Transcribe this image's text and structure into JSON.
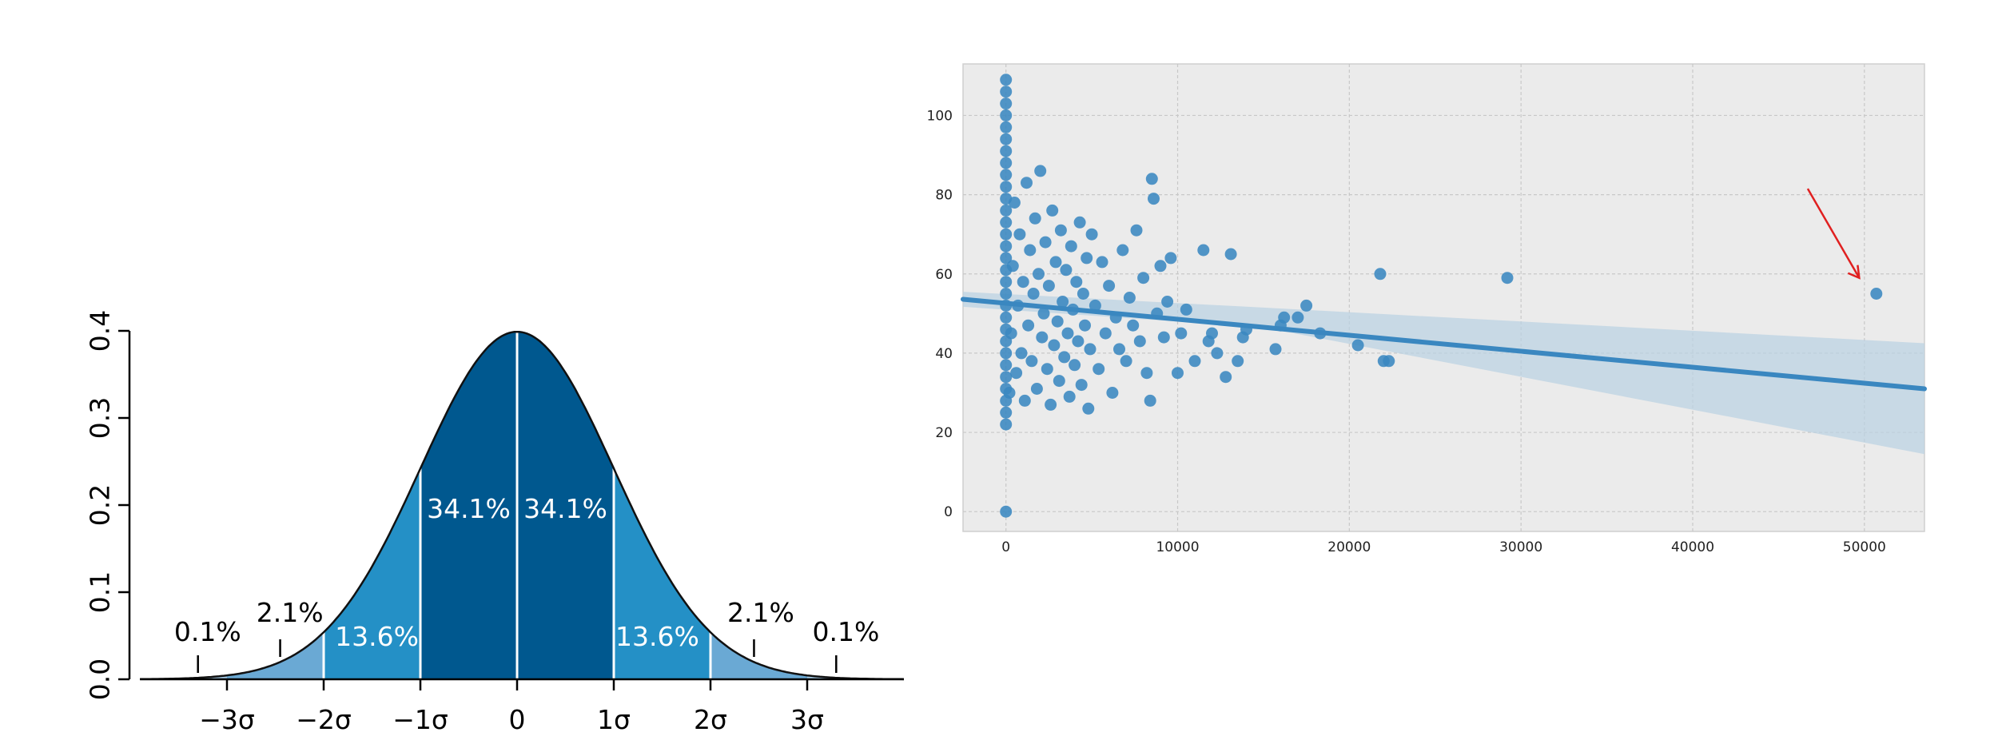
{
  "chart_data": [
    {
      "type": "area",
      "title": "",
      "xlabel": "",
      "ylabel": "",
      "xlim": [
        -3.9,
        4.0
      ],
      "ylim": [
        0.0,
        0.4
      ],
      "grid": false,
      "y_ticks": [
        "0.0",
        "0.1",
        "0.2",
        "0.3",
        "0.4"
      ],
      "x_ticks": [
        "−3σ",
        "−2σ",
        "−1σ",
        "0",
        "1σ",
        "2σ",
        "3σ"
      ],
      "x_tick_values": [
        -3,
        -2,
        -1,
        0,
        1,
        2,
        3
      ],
      "curve": "standard normal density",
      "bands": [
        {
          "from": -1,
          "to": 0,
          "label": "34.1%",
          "color": "#00588f"
        },
        {
          "from": 0,
          "to": 1,
          "label": "34.1%",
          "color": "#00588f"
        },
        {
          "from": -2,
          "to": -1,
          "label": "13.6%",
          "color": "#2490c6"
        },
        {
          "from": 1,
          "to": 2,
          "label": "13.6%",
          "color": "#2490c6"
        },
        {
          "from": -3,
          "to": -2,
          "label": "2.1%",
          "color": "#6aa9d4"
        },
        {
          "from": 2,
          "to": 3,
          "label": "2.1%",
          "color": "#6aa9d4"
        },
        {
          "from": -4,
          "to": -3,
          "label": "0.1%",
          "color": "#a5cbe7"
        },
        {
          "from": 3,
          "to": 4,
          "label": "0.1%",
          "color": "#a5cbe7"
        }
      ]
    },
    {
      "type": "scatter",
      "title": "",
      "xlabel": "",
      "ylabel": "",
      "xlim": [
        -2500,
        53500
      ],
      "ylim": [
        -5,
        113
      ],
      "grid": true,
      "x_ticks": [
        "0",
        "10000",
        "20000",
        "30000",
        "40000",
        "50000"
      ],
      "x_tick_values": [
        0,
        10000,
        20000,
        30000,
        40000,
        50000
      ],
      "y_ticks": [
        "0",
        "20",
        "40",
        "60",
        "80",
        "100"
      ],
      "y_tick_values": [
        0,
        20,
        40,
        60,
        80,
        100
      ],
      "point_color": "#3a87c0",
      "regression_line": {
        "x": [
          -2500,
          53500
        ],
        "y": [
          53.6,
          31.0
        ],
        "color": "#3a87c0"
      },
      "confidence_band": {
        "x": [
          -2500,
          15000,
          53500
        ],
        "upper": [
          55.5,
          51.5,
          42.5
        ],
        "lower": [
          51.7,
          46.5,
          14.5
        ],
        "color": "#b9d1e3"
      },
      "outlier_arrow_color": "#e02020",
      "points": [
        [
          0,
          0
        ],
        [
          0,
          22
        ],
        [
          0,
          25
        ],
        [
          0,
          28
        ],
        [
          0,
          31
        ],
        [
          0,
          34
        ],
        [
          0,
          37
        ],
        [
          0,
          40
        ],
        [
          0,
          43
        ],
        [
          0,
          46
        ],
        [
          0,
          49
        ],
        [
          0,
          52
        ],
        [
          0,
          55
        ],
        [
          0,
          58
        ],
        [
          0,
          61
        ],
        [
          0,
          64
        ],
        [
          0,
          67
        ],
        [
          0,
          70
        ],
        [
          0,
          73
        ],
        [
          0,
          76
        ],
        [
          0,
          79
        ],
        [
          0,
          82
        ],
        [
          0,
          85
        ],
        [
          0,
          88
        ],
        [
          0,
          91
        ],
        [
          0,
          94
        ],
        [
          0,
          97
        ],
        [
          0,
          100
        ],
        [
          0,
          103
        ],
        [
          0,
          106
        ],
        [
          0,
          109
        ],
        [
          200,
          30
        ],
        [
          300,
          45
        ],
        [
          400,
          62
        ],
        [
          500,
          78
        ],
        [
          600,
          35
        ],
        [
          700,
          52
        ],
        [
          800,
          70
        ],
        [
          900,
          40
        ],
        [
          1000,
          58
        ],
        [
          1100,
          28
        ],
        [
          1200,
          83
        ],
        [
          1300,
          47
        ],
        [
          1400,
          66
        ],
        [
          1500,
          38
        ],
        [
          1600,
          55
        ],
        [
          1700,
          74
        ],
        [
          1800,
          31
        ],
        [
          1900,
          60
        ],
        [
          2000,
          86
        ],
        [
          2100,
          44
        ],
        [
          2200,
          50
        ],
        [
          2300,
          68
        ],
        [
          2400,
          36
        ],
        [
          2500,
          57
        ],
        [
          2600,
          27
        ],
        [
          2700,
          76
        ],
        [
          2800,
          42
        ],
        [
          2900,
          63
        ],
        [
          3000,
          48
        ],
        [
          3100,
          33
        ],
        [
          3200,
          71
        ],
        [
          3300,
          53
        ],
        [
          3400,
          39
        ],
        [
          3500,
          61
        ],
        [
          3600,
          45
        ],
        [
          3700,
          29
        ],
        [
          3800,
          67
        ],
        [
          3900,
          51
        ],
        [
          4000,
          37
        ],
        [
          4100,
          58
        ],
        [
          4200,
          43
        ],
        [
          4300,
          73
        ],
        [
          4400,
          32
        ],
        [
          4500,
          55
        ],
        [
          4600,
          47
        ],
        [
          4700,
          64
        ],
        [
          4800,
          26
        ],
        [
          4900,
          41
        ],
        [
          5000,
          70
        ],
        [
          5200,
          52
        ],
        [
          5400,
          36
        ],
        [
          5600,
          63
        ],
        [
          5800,
          45
        ],
        [
          6000,
          57
        ],
        [
          6200,
          30
        ],
        [
          6400,
          49
        ],
        [
          6600,
          41
        ],
        [
          6800,
          66
        ],
        [
          7000,
          38
        ],
        [
          7200,
          54
        ],
        [
          7400,
          47
        ],
        [
          7600,
          71
        ],
        [
          7800,
          43
        ],
        [
          8000,
          59
        ],
        [
          8200,
          35
        ],
        [
          8400,
          28
        ],
        [
          8500,
          84
        ],
        [
          8600,
          79
        ],
        [
          8800,
          50
        ],
        [
          9000,
          62
        ],
        [
          9200,
          44
        ],
        [
          9400,
          53
        ],
        [
          9600,
          64
        ],
        [
          10000,
          35
        ],
        [
          10200,
          45
        ],
        [
          10500,
          51
        ],
        [
          11000,
          38
        ],
        [
          11500,
          66
        ],
        [
          11800,
          43
        ],
        [
          12000,
          45
        ],
        [
          12300,
          40
        ],
        [
          12800,
          34
        ],
        [
          13100,
          65
        ],
        [
          13500,
          38
        ],
        [
          13800,
          44
        ],
        [
          14000,
          46
        ],
        [
          15700,
          41
        ],
        [
          16000,
          47
        ],
        [
          16200,
          49
        ],
        [
          17000,
          49
        ],
        [
          17500,
          52
        ],
        [
          18300,
          45
        ],
        [
          20500,
          42
        ],
        [
          21800,
          60
        ],
        [
          22000,
          38
        ],
        [
          22300,
          38
        ],
        [
          29200,
          59
        ],
        [
          50700,
          55
        ]
      ]
    }
  ]
}
